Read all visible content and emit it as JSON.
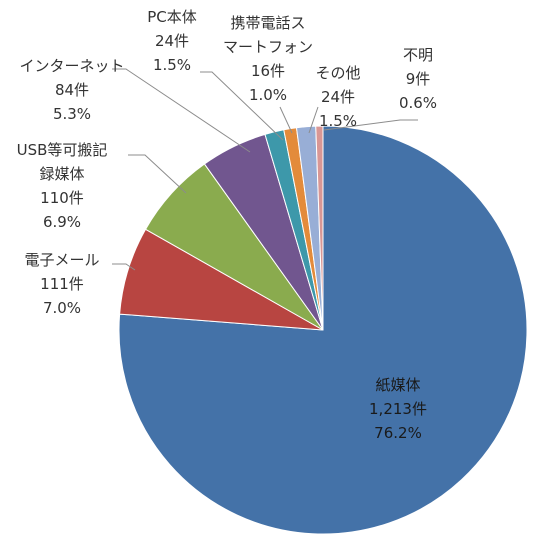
{
  "chart_data": {
    "type": "pie",
    "title": "",
    "slices": [
      {
        "name": "紙媒体",
        "label_lines": [
          "紙媒体"
        ],
        "count_label": "1,213件",
        "value": 1213,
        "percent_label": "76.2%",
        "color": "#4472a8"
      },
      {
        "name": "電子メール",
        "label_lines": [
          "電子メール"
        ],
        "count_label": "111件",
        "value": 111,
        "percent_label": "7.0%",
        "color": "#b84541"
      },
      {
        "name": "USB等可搬記録媒体",
        "label_lines": [
          "USB等可搬記",
          "録媒体"
        ],
        "count_label": "110件",
        "value": 110,
        "percent_label": "6.9%",
        "color": "#8aab4e"
      },
      {
        "name": "インターネット",
        "label_lines": [
          "インターネット"
        ],
        "count_label": "84件",
        "value": 84,
        "percent_label": "5.3%",
        "color": "#71568f"
      },
      {
        "name": "PC本体",
        "label_lines": [
          "PC本体"
        ],
        "count_label": "24件",
        "value": 24,
        "percent_label": "1.5%",
        "color": "#3d98aa"
      },
      {
        "name": "携帯電話スマートフォン",
        "label_lines": [
          "携帯電話ス",
          "マートフォン"
        ],
        "count_label": "16件",
        "value": 16,
        "percent_label": "1.0%",
        "color": "#e38b3b"
      },
      {
        "name": "その他",
        "label_lines": [
          "その他"
        ],
        "count_label": "24件",
        "value": 24,
        "percent_label": "1.5%",
        "color": "#98aed6"
      },
      {
        "name": "不明",
        "label_lines": [
          "不明"
        ],
        "count_label": "9件",
        "value": 9,
        "percent_label": "0.6%",
        "color": "#d99795"
      }
    ],
    "start_angle_deg": 0,
    "direction": "clockwise",
    "legend": "none"
  }
}
